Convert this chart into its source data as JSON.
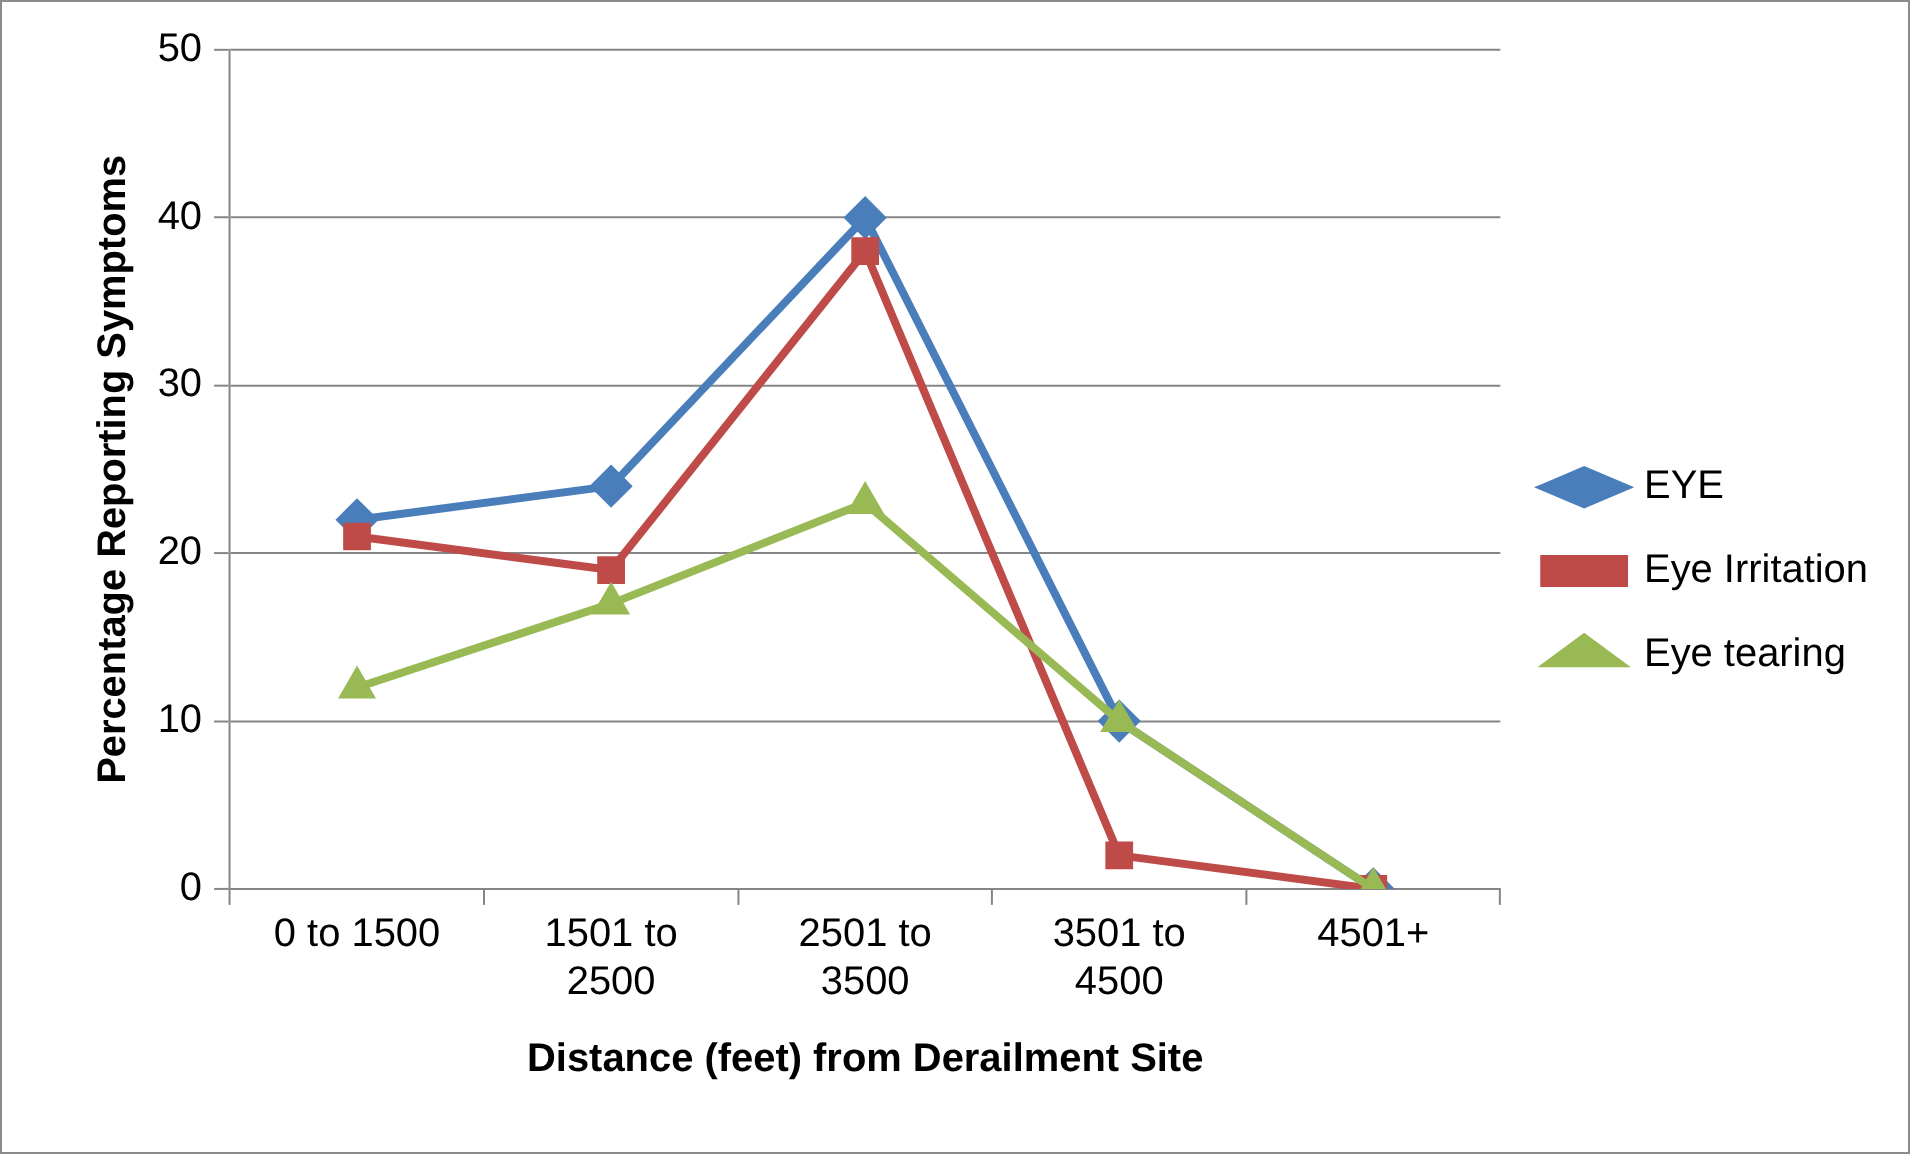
{
  "chart_data": {
    "type": "line",
    "xlabel": "Distance (feet) from Derailment Site",
    "ylabel": "Percentage Reporting Symptoms",
    "categories": [
      "0 to 1500",
      "1501 to 2500",
      "2501 to 3500",
      "3501 to 4500",
      "4501+"
    ],
    "series": [
      {
        "name": "EYE",
        "color": "#4a7ebb",
        "marker": "diamond",
        "values": [
          22,
          24,
          40,
          10,
          0
        ]
      },
      {
        "name": "Eye Irritation",
        "color": "#be4b48",
        "marker": "square",
        "values": [
          21,
          19,
          38,
          2,
          0
        ]
      },
      {
        "name": "Eye tearing",
        "color": "#98b954",
        "marker": "triangle",
        "values": [
          12,
          17,
          23,
          10,
          0
        ]
      }
    ],
    "ylim": [
      0,
      50
    ],
    "yticks": [
      0,
      10,
      20,
      30,
      40,
      50
    ],
    "grid": "y",
    "legend": "right"
  }
}
